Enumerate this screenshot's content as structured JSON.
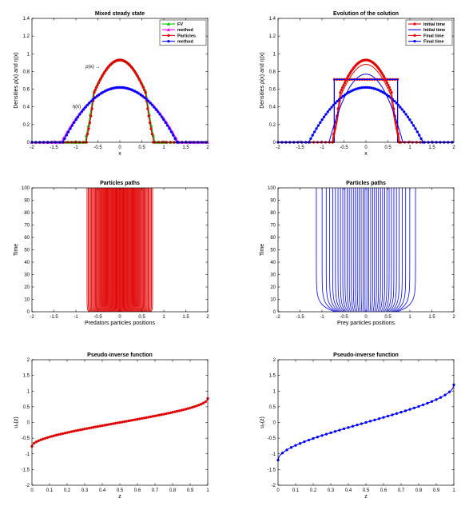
{
  "chart_data": [
    {
      "type": "line",
      "title": "Mixed steady state",
      "xlabel": "x",
      "ylabel": "Densities ρ(x) and η(x)",
      "xlim": [
        -2,
        2
      ],
      "ylim": [
        0,
        1.4
      ],
      "xticks": [
        -2,
        -1.5,
        -1,
        -0.5,
        0,
        0.5,
        1,
        1.5,
        2
      ],
      "yticks": [
        0,
        0.2,
        0.4,
        0.6,
        0.8,
        1,
        1.2,
        1.4
      ],
      "legend_position": "top-right",
      "annotations": [
        {
          "text": "ρ(x) →",
          "x": -0.45,
          "y": 0.84
        },
        {
          "text": "η(x) →",
          "x": -0.75,
          "y": 0.39
        }
      ],
      "series": [
        {
          "name": "FV",
          "color": "#00c000",
          "marker": "triangle",
          "shape": "rho-steady",
          "params": {
            "amp": 0.93,
            "support": 0.78,
            "pad": 0.25
          }
        },
        {
          "name": "method",
          "color": "#ff00ff",
          "marker": "triangle",
          "shape": "eta-steady",
          "params": {
            "amp": 0.62,
            "support": 1.33,
            "pad": 0.3
          }
        },
        {
          "name": "Particles",
          "color": "#e00000",
          "marker": "circle",
          "shape": "rho-steady",
          "params": {
            "amp": 0.93,
            "support": 0.76,
            "pad": 0
          }
        },
        {
          "name": "method",
          "color": "#0000ff",
          "marker": "circle",
          "shape": "eta-steady",
          "params": {
            "amp": 0.62,
            "support": 1.3,
            "pad": 0
          }
        }
      ]
    },
    {
      "type": "line",
      "title": "Evolution of the solution",
      "xlabel": "x",
      "ylabel": "Densities ρ(x) and η(x)",
      "xlim": [
        -2,
        2
      ],
      "ylim": [
        0,
        1.4
      ],
      "xticks": [
        -2,
        -1.5,
        -1,
        -0.5,
        0,
        0.5,
        1,
        1.5,
        2
      ],
      "yticks": [
        0,
        0.2,
        0.4,
        0.6,
        0.8,
        1,
        1.2,
        1.4
      ],
      "legend_position": "top-right",
      "series": [
        {
          "name": "Initial time",
          "color": "#e00000",
          "marker": "circle",
          "shape": "box",
          "params": {
            "amp": 0.71,
            "support": 0.72
          }
        },
        {
          "name": "Initial time",
          "color": "#0000ff",
          "marker": "none",
          "shape": "box",
          "params": {
            "amp": 0.71,
            "support": 0.72
          }
        },
        {
          "name": "Final time",
          "color": "#e00000",
          "marker": "circle",
          "shape": "rho-steady",
          "params": {
            "amp": 0.93,
            "support": 0.76
          }
        },
        {
          "name": "Final time",
          "color": "#0000ff",
          "marker": "circle",
          "shape": "eta-steady",
          "params": {
            "amp": 0.62,
            "support": 1.3
          }
        },
        {
          "name": "",
          "color": "#e00000",
          "marker": "none",
          "shape": "rho-steady",
          "params": {
            "amp": 0.88,
            "support": 0.74
          }
        },
        {
          "name": "",
          "color": "#0000ff",
          "marker": "none",
          "shape": "eta-steady",
          "params": {
            "amp": 0.77,
            "support": 0.84
          }
        }
      ]
    },
    {
      "type": "line",
      "title": "Particles paths",
      "xlabel": "Predators particles positions",
      "ylabel": "Time",
      "xlim": [
        -2,
        2
      ],
      "ylim": [
        0,
        100
      ],
      "xticks": [
        -2,
        -1.5,
        -1,
        -0.5,
        0,
        0.5,
        1,
        1.5,
        2
      ],
      "yticks": [
        0,
        10,
        20,
        30,
        40,
        50,
        60,
        70,
        80,
        90,
        100
      ],
      "color": "#e00000",
      "paths": {
        "count": 80,
        "start_half_width": 0.72,
        "end_half_width": 0.76,
        "relax_time": 2
      }
    },
    {
      "type": "line",
      "title": "Particles paths",
      "xlabel": "Prey particles positions",
      "ylabel": "Time",
      "xlim": [
        -2,
        2
      ],
      "ylim": [
        0,
        100
      ],
      "xticks": [
        -2,
        -1.5,
        -1,
        -0.5,
        0,
        0.5,
        1,
        1.5,
        2
      ],
      "yticks": [
        0,
        10,
        20,
        30,
        40,
        50,
        60,
        70,
        80,
        90,
        100
      ],
      "color": "#0000ff",
      "paths": {
        "count": 40,
        "start_half_width": 0.72,
        "end_half_width": 1.3,
        "relax_time": 5
      }
    },
    {
      "type": "line",
      "title": "Pseudo-inverse function",
      "xlabel": "z",
      "ylabel": "u₁(z)",
      "xlim": [
        0,
        1
      ],
      "ylim": [
        -2,
        2
      ],
      "xticks": [
        0,
        0.1,
        0.2,
        0.3,
        0.4,
        0.5,
        0.6,
        0.7,
        0.8,
        0.9,
        1
      ],
      "yticks": [
        -2,
        -1.5,
        -1,
        -0.5,
        0,
        0.5,
        1,
        1.5,
        2
      ],
      "series": [
        {
          "name": "",
          "color": "#e00000",
          "marker": "circle",
          "shape": "pseudo-inverse",
          "params": {
            "amp": 0.76,
            "points": 80
          }
        }
      ]
    },
    {
      "type": "line",
      "title": "Pseudo-inverse function",
      "xlabel": "z",
      "ylabel": "u₂(z)",
      "xlim": [
        0,
        1
      ],
      "ylim": [
        -2,
        2
      ],
      "xticks": [
        0,
        0.1,
        0.2,
        0.3,
        0.4,
        0.5,
        0.6,
        0.7,
        0.8,
        0.9,
        1
      ],
      "yticks": [
        -2,
        -1.5,
        -1,
        -0.5,
        0,
        0.5,
        1,
        1.5,
        2
      ],
      "series": [
        {
          "name": "",
          "color": "#0000ff",
          "marker": "circle",
          "shape": "pseudo-inverse",
          "params": {
            "amp": 1.2,
            "points": 40
          }
        }
      ]
    }
  ]
}
